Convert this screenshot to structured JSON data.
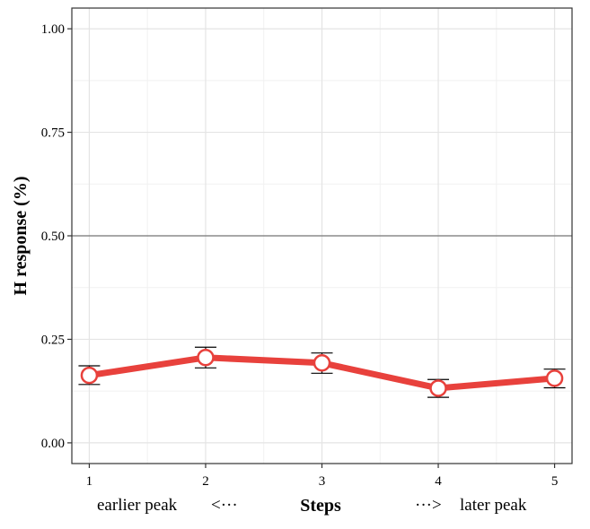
{
  "chart_data": {
    "type": "line",
    "ylabel": "H response (%)",
    "xlabel": "Steps",
    "x_left_note": "earlier peak",
    "x_left_arrow": "<···",
    "x_right_arrow": "···>",
    "x_right_note": "later peak",
    "xlim": [
      0.85,
      5.15
    ],
    "ylim": [
      -0.05,
      1.05
    ],
    "x": [
      1,
      2,
      3,
      4,
      5
    ],
    "x_tick_labels": [
      "1",
      "2",
      "3",
      "4",
      "5"
    ],
    "y_ticks": [
      0.0,
      0.25,
      0.5,
      0.75,
      1.0
    ],
    "y_tick_labels": [
      "0.00",
      "0.25",
      "0.50",
      "0.75",
      "1.00"
    ],
    "reference_line_y": 0.5,
    "grid": true,
    "series": [
      {
        "values": [
          0.163,
          0.206,
          0.193,
          0.132,
          0.156
        ],
        "error_low": [
          0.141,
          0.181,
          0.168,
          0.11,
          0.133
        ],
        "error_high": [
          0.186,
          0.231,
          0.217,
          0.153,
          0.178
        ],
        "line_color": "#e8413c",
        "marker_fill": "#ffffff",
        "errorbar_color": "#000000"
      }
    ]
  }
}
